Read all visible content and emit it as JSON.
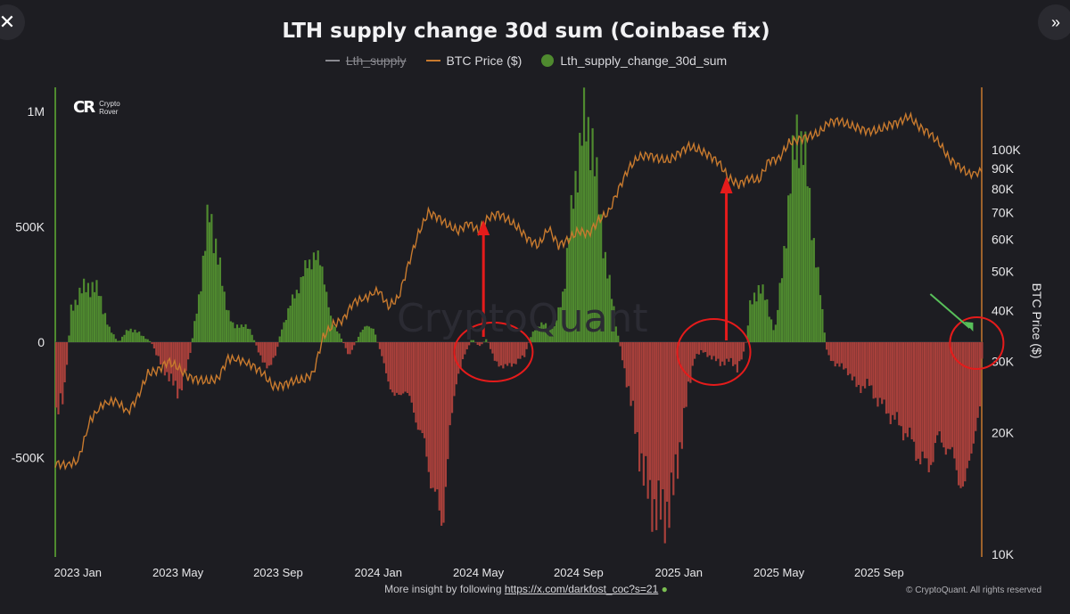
{
  "ui": {
    "close_icon": "close-icon",
    "expand_icon": "double-chevron-right-icon"
  },
  "brand": {
    "logo_name": "Crypto Rover",
    "logo_line1": "Crypto",
    "logo_line2": "Rover",
    "watermark": "CryptoQuant"
  },
  "footer": {
    "prefix": "More insight by following ",
    "link": "https://x.com/darkfost_coc?s=21",
    "copyright": "© CryptoQuant. All rights reserved"
  },
  "colors": {
    "background": "#1d1d22",
    "positive": "#4f8a2f",
    "negative": "#a8403b",
    "price_line": "#c87a2e",
    "lth_line": "#8a8a90",
    "annotation_red": "#e51b1b",
    "annotation_green": "#58c05a"
  },
  "chart_data": {
    "type": "bar",
    "title": "LTH supply change 30d sum (Coinbase fix)",
    "legend_position": "top-center",
    "legend": [
      {
        "name": "Lth_supply",
        "style": "line",
        "hidden": true
      },
      {
        "name": "BTC Price ($)",
        "style": "line"
      },
      {
        "name": "Lth_supply_change_30d_sum",
        "style": "dot"
      }
    ],
    "y_left": {
      "ticks": [
        "1M",
        "500K",
        "0",
        "-500K"
      ],
      "tick_values": [
        1000000,
        500000,
        0,
        -500000
      ],
      "range": [
        -820000,
        1100000
      ]
    },
    "y_right": {
      "label": "BTC Price ($)",
      "scale": "log",
      "ticks": [
        "100K",
        "90K",
        "80K",
        "70K",
        "60K",
        "50K",
        "40K",
        "30K",
        "20K",
        "10K"
      ],
      "tick_values": [
        100000,
        90000,
        80000,
        70000,
        60000,
        50000,
        40000,
        30000,
        20000,
        10000
      ],
      "range": [
        10000,
        125000
      ]
    },
    "x_axis": {
      "ticks": [
        "2023 Jan",
        "2023 May",
        "2023 Sep",
        "2024 Jan",
        "2024 May",
        "2024 Sep",
        "2025 Jan",
        "2025 May",
        "2025 Sep"
      ],
      "tick_months": [
        0,
        4,
        8,
        12,
        16,
        20,
        24,
        28,
        32
      ],
      "month_range": [
        -0.9,
        36.1
      ]
    },
    "grid": false,
    "series": [
      {
        "name": "Lth_supply_change_30d_sum",
        "kind": "bar",
        "x_unit": "months since 2023 Jan",
        "points": [
          [
            -0.9,
            -300000
          ],
          [
            -0.6,
            -250000
          ],
          [
            -0.3,
            150000
          ],
          [
            0.3,
            250000
          ],
          [
            0.8,
            220000
          ],
          [
            1.2,
            60000
          ],
          [
            1.6,
            0
          ],
          [
            2.0,
            60000
          ],
          [
            2.4,
            40000
          ],
          [
            2.9,
            0
          ],
          [
            3.2,
            -80000
          ],
          [
            3.6,
            -150000
          ],
          [
            4.0,
            -220000
          ],
          [
            4.4,
            -80000
          ],
          [
            4.8,
            200000
          ],
          [
            5.2,
            560000
          ],
          [
            5.5,
            420000
          ],
          [
            5.8,
            200000
          ],
          [
            6.2,
            60000
          ],
          [
            6.6,
            80000
          ],
          [
            6.9,
            40000
          ],
          [
            7.2,
            -50000
          ],
          [
            7.6,
            -120000
          ],
          [
            7.9,
            -40000
          ],
          [
            8.1,
            60000
          ],
          [
            8.6,
            200000
          ],
          [
            9.0,
            300000
          ],
          [
            9.4,
            390000
          ],
          [
            9.8,
            290000
          ],
          [
            10.1,
            80000
          ],
          [
            10.4,
            40000
          ],
          [
            10.8,
            -60000
          ],
          [
            11.2,
            30000
          ],
          [
            11.5,
            80000
          ],
          [
            11.8,
            50000
          ],
          [
            12.2,
            -100000
          ],
          [
            12.6,
            -250000
          ],
          [
            13.0,
            -200000
          ],
          [
            13.4,
            -300000
          ],
          [
            13.8,
            -450000
          ],
          [
            14.2,
            -650000
          ],
          [
            14.5,
            -800000
          ],
          [
            14.8,
            -420000
          ],
          [
            15.1,
            -150000
          ],
          [
            15.4,
            -60000
          ],
          [
            15.7,
            15000
          ],
          [
            16.0,
            -20000
          ],
          [
            16.3,
            15000
          ],
          [
            16.6,
            -80000
          ],
          [
            17.0,
            -110000
          ],
          [
            17.4,
            -90000
          ],
          [
            17.8,
            -60000
          ],
          [
            18.0,
            10000
          ],
          [
            18.2,
            60000
          ],
          [
            18.6,
            80000
          ],
          [
            19.0,
            60000
          ],
          [
            19.4,
            250000
          ],
          [
            19.8,
            700000
          ],
          [
            20.2,
            950000
          ],
          [
            20.5,
            900000
          ],
          [
            20.8,
            550000
          ],
          [
            21.2,
            250000
          ],
          [
            21.5,
            50000
          ],
          [
            21.8,
            -120000
          ],
          [
            22.2,
            -350000
          ],
          [
            22.6,
            -600000
          ],
          [
            23.0,
            -720000
          ],
          [
            23.4,
            -750000
          ],
          [
            23.8,
            -620000
          ],
          [
            24.2,
            -300000
          ],
          [
            24.6,
            -60000
          ],
          [
            24.9,
            -40000
          ],
          [
            25.2,
            -60000
          ],
          [
            25.6,
            -90000
          ],
          [
            26.0,
            -80000
          ],
          [
            26.3,
            -110000
          ],
          [
            26.6,
            -40000
          ],
          [
            26.8,
            150000
          ],
          [
            27.2,
            250000
          ],
          [
            27.5,
            160000
          ],
          [
            27.8,
            40000
          ],
          [
            28.0,
            220000
          ],
          [
            28.4,
            650000
          ],
          [
            28.7,
            950000
          ],
          [
            29.0,
            800000
          ],
          [
            29.3,
            500000
          ],
          [
            29.6,
            220000
          ],
          [
            29.9,
            -60000
          ],
          [
            30.3,
            -100000
          ],
          [
            30.7,
            -120000
          ],
          [
            31.1,
            -200000
          ],
          [
            31.5,
            -180000
          ],
          [
            31.9,
            -250000
          ],
          [
            32.3,
            -300000
          ],
          [
            32.7,
            -350000
          ],
          [
            33.1,
            -400000
          ],
          [
            33.5,
            -480000
          ],
          [
            33.9,
            -550000
          ],
          [
            34.3,
            -420000
          ],
          [
            34.7,
            -450000
          ],
          [
            35.1,
            -560000
          ],
          [
            35.4,
            -650000
          ],
          [
            35.7,
            -420000
          ],
          [
            36.0,
            -300000
          ],
          [
            36.1,
            0
          ]
        ]
      },
      {
        "name": "BTC Price ($)",
        "kind": "line",
        "x_unit": "months since 2023 Jan",
        "points": [
          [
            -0.9,
            16800
          ],
          [
            -0.5,
            16600
          ],
          [
            0,
            17000
          ],
          [
            0.5,
            21500
          ],
          [
            1.0,
            23500
          ],
          [
            1.5,
            24000
          ],
          [
            2.0,
            22500
          ],
          [
            2.4,
            24500
          ],
          [
            2.8,
            28000
          ],
          [
            3.2,
            28500
          ],
          [
            3.6,
            30000
          ],
          [
            4.0,
            29000
          ],
          [
            4.4,
            27500
          ],
          [
            4.8,
            27000
          ],
          [
            5.2,
            26800
          ],
          [
            5.6,
            27200
          ],
          [
            6.0,
            30500
          ],
          [
            6.5,
            30200
          ],
          [
            7.0,
            29200
          ],
          [
            7.4,
            28000
          ],
          [
            7.8,
            26000
          ],
          [
            8.2,
            26200
          ],
          [
            8.6,
            26800
          ],
          [
            9.0,
            27000
          ],
          [
            9.4,
            28000
          ],
          [
            9.8,
            34500
          ],
          [
            10.2,
            37000
          ],
          [
            10.6,
            38000
          ],
          [
            11.0,
            42000
          ],
          [
            11.5,
            43000
          ],
          [
            12.0,
            45000
          ],
          [
            12.4,
            41000
          ],
          [
            12.8,
            43000
          ],
          [
            13.2,
            52000
          ],
          [
            13.6,
            62000
          ],
          [
            14.0,
            70000
          ],
          [
            14.4,
            68000
          ],
          [
            14.8,
            65000
          ],
          [
            15.2,
            63000
          ],
          [
            15.6,
            66000
          ],
          [
            16.0,
            63000
          ],
          [
            16.4,
            68000
          ],
          [
            16.8,
            69500
          ],
          [
            17.2,
            67000
          ],
          [
            17.6,
            64000
          ],
          [
            18.0,
            60000
          ],
          [
            18.4,
            58000
          ],
          [
            18.8,
            64000
          ],
          [
            19.2,
            58000
          ],
          [
            19.6,
            60000
          ],
          [
            20.0,
            63000
          ],
          [
            20.4,
            62000
          ],
          [
            20.8,
            67000
          ],
          [
            21.2,
            70000
          ],
          [
            21.6,
            80000
          ],
          [
            22.0,
            90000
          ],
          [
            22.4,
            96000
          ],
          [
            22.8,
            97000
          ],
          [
            23.2,
            95000
          ],
          [
            23.6,
            94000
          ],
          [
            24.0,
            98000
          ],
          [
            24.4,
            102000
          ],
          [
            24.8,
            100000
          ],
          [
            25.2,
            97000
          ],
          [
            25.6,
            93000
          ],
          [
            26.0,
            85000
          ],
          [
            26.4,
            82000
          ],
          [
            26.8,
            85000
          ],
          [
            27.2,
            84000
          ],
          [
            27.6,
            94000
          ],
          [
            28.0,
            95000
          ],
          [
            28.4,
            104000
          ],
          [
            28.8,
            106000
          ],
          [
            29.2,
            108000
          ],
          [
            29.6,
            110000
          ],
          [
            30.0,
            117000
          ],
          [
            30.4,
            118000
          ],
          [
            30.8,
            115000
          ],
          [
            31.2,
            113000
          ],
          [
            31.6,
            111000
          ],
          [
            32.0,
            112000
          ],
          [
            32.4,
            115000
          ],
          [
            32.8,
            117000
          ],
          [
            33.2,
            121000
          ],
          [
            33.6,
            114000
          ],
          [
            34.0,
            110000
          ],
          [
            34.4,
            104000
          ],
          [
            34.8,
            95000
          ],
          [
            35.2,
            91000
          ],
          [
            35.6,
            87000
          ],
          [
            36.1,
            88000
          ]
        ]
      }
    ],
    "annotations": [
      {
        "type": "arrow",
        "color": "red",
        "target_month": 16.2,
        "target_value_price": 63000
      },
      {
        "type": "arrow",
        "color": "red",
        "target_month": 25.9,
        "target_value_price": 85000
      },
      {
        "type": "ellipse",
        "color": "red",
        "center_month": 16.6
      },
      {
        "type": "ellipse",
        "color": "red",
        "center_month": 25.6
      },
      {
        "type": "ellipse",
        "color": "red",
        "center_month": 36.0
      },
      {
        "type": "arrow",
        "color": "green",
        "target_month": 36.0
      }
    ]
  }
}
